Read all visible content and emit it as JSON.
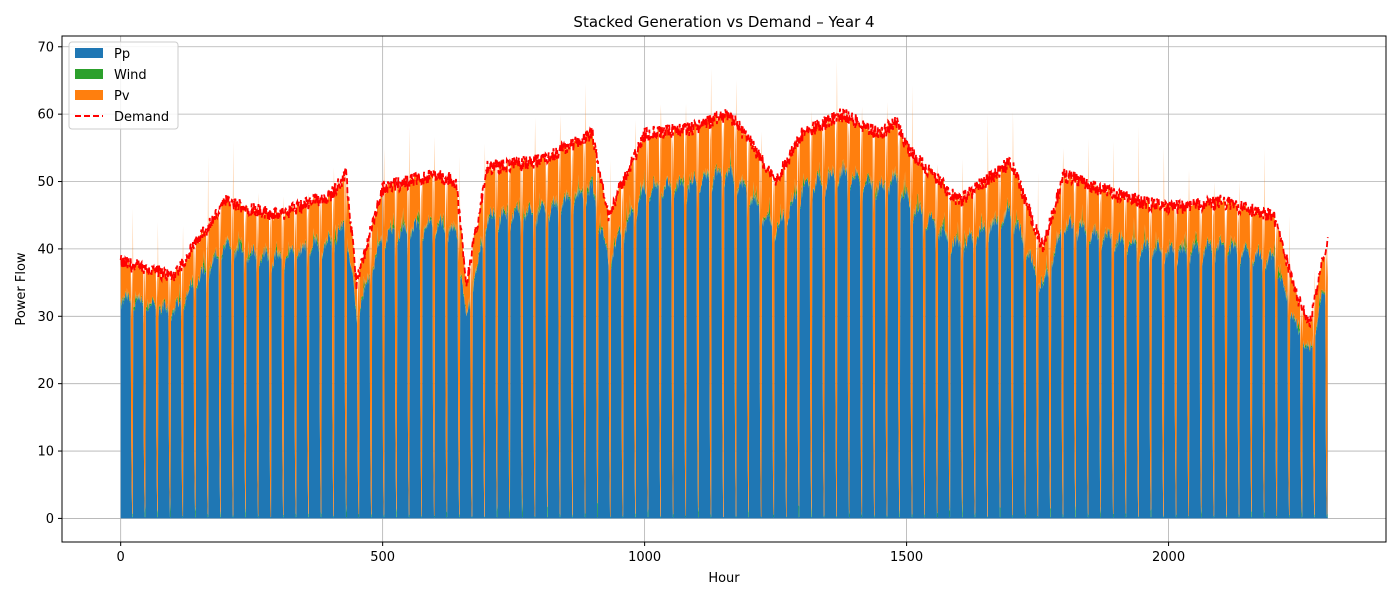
{
  "chart_data": {
    "type": "area",
    "title": "Stacked Generation vs Demand – Year 4",
    "xlabel": "Hour",
    "ylabel": "Power Flow",
    "xlim": [
      -112,
      2415
    ],
    "ylim": [
      -3.5,
      71.6
    ],
    "xticks": [
      0,
      500,
      1000,
      1500,
      2000
    ],
    "yticks": [
      0,
      10,
      20,
      30,
      40,
      50,
      60,
      70
    ],
    "grid": true,
    "legend": {
      "position": "top-left",
      "entries": [
        "Pp",
        "Wind",
        "Pv",
        "Demand"
      ]
    },
    "cycle_hours": 24,
    "x_max": 2304,
    "colors": {
      "Pp": "#1f77b4",
      "Wind": "#2ca02c",
      "Pv": "#ff7f0e",
      "Demand": "#ff0000"
    },
    "series": [
      {
        "name": "Pp",
        "style": "stacked-area",
        "description": "baseline generation, approx. 86% of demand"
      },
      {
        "name": "Wind",
        "style": "stacked-area",
        "description": "small spiky contribution, mostly 0–3"
      },
      {
        "name": "Pv",
        "style": "stacked-area",
        "description": "daily solar peak on top of Pp+Wind"
      },
      {
        "name": "Demand",
        "style": "dashed-line"
      }
    ],
    "demand_daily_peaks": [
      {
        "x": 0,
        "y": 38
      },
      {
        "x": 100,
        "y": 36
      },
      {
        "x": 200,
        "y": 47
      },
      {
        "x": 300,
        "y": 45
      },
      {
        "x": 400,
        "y": 48
      },
      {
        "x": 430,
        "y": 51
      },
      {
        "x": 450,
        "y": 35
      },
      {
        "x": 500,
        "y": 49
      },
      {
        "x": 600,
        "y": 51
      },
      {
        "x": 640,
        "y": 50
      },
      {
        "x": 660,
        "y": 35
      },
      {
        "x": 700,
        "y": 52
      },
      {
        "x": 800,
        "y": 53
      },
      {
        "x": 900,
        "y": 57
      },
      {
        "x": 930,
        "y": 45
      },
      {
        "x": 1000,
        "y": 57
      },
      {
        "x": 1100,
        "y": 58
      },
      {
        "x": 1160,
        "y": 60
      },
      {
        "x": 1200,
        "y": 56
      },
      {
        "x": 1250,
        "y": 50
      },
      {
        "x": 1300,
        "y": 57
      },
      {
        "x": 1380,
        "y": 60
      },
      {
        "x": 1450,
        "y": 57
      },
      {
        "x": 1480,
        "y": 59
      },
      {
        "x": 1500,
        "y": 55
      },
      {
        "x": 1600,
        "y": 47
      },
      {
        "x": 1700,
        "y": 53
      },
      {
        "x": 1760,
        "y": 40
      },
      {
        "x": 1800,
        "y": 51
      },
      {
        "x": 1900,
        "y": 48
      },
      {
        "x": 2000,
        "y": 46
      },
      {
        "x": 2100,
        "y": 47
      },
      {
        "x": 2200,
        "y": 45
      },
      {
        "x": 2250,
        "y": 32
      },
      {
        "x": 2270,
        "y": 29
      },
      {
        "x": 2304,
        "y": 42
      }
    ]
  }
}
